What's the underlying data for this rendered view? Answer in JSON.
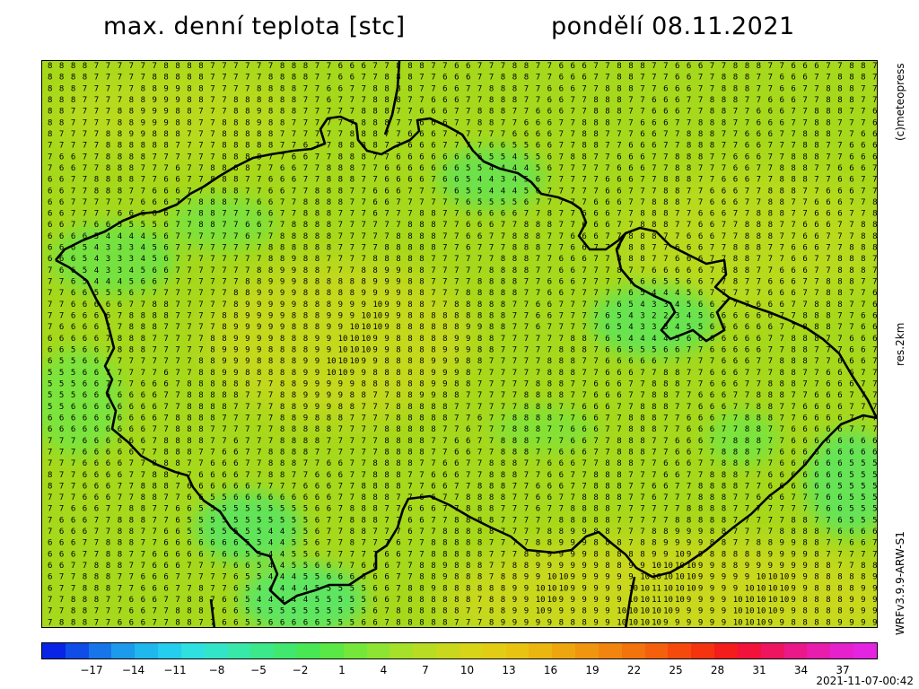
{
  "header": {
    "title": "max. denní teplota [stc]",
    "date_label": "pondělí 08.11.2021"
  },
  "side_labels": {
    "credit": "(c)meteopress",
    "resolution": "res.2km",
    "model": "WRFv3.9.9-ARW-S1"
  },
  "timestamp": "2021-11-07-00:42",
  "legend": {
    "ticks": [
      "−17",
      "−14",
      "−11",
      "−8",
      "−5",
      "−2",
      "1",
      "4",
      "7",
      "10",
      "13",
      "16",
      "19",
      "22",
      "25",
      "28",
      "31",
      "34",
      "37"
    ],
    "colors": [
      "#0a24e6",
      "#0f4ce8",
      "#1775ea",
      "#1c9aec",
      "#20b6ee",
      "#25cdee",
      "#2ee0e0",
      "#33e5c8",
      "#38e8a8",
      "#3be88a",
      "#40e86e",
      "#48e855",
      "#5ae845",
      "#74e73a",
      "#8ee432",
      "#a5e02a",
      "#b8dc22",
      "#c9d81c",
      "#d8d418",
      "#e2cd14",
      "#e8c312",
      "#ecb610",
      "#eea60f",
      "#f0960e",
      "#f2850d",
      "#f3730c",
      "#f4600b",
      "#f54a0c",
      "#f5330f",
      "#f51c1c",
      "#f2123a",
      "#ee1460",
      "#ea1888",
      "#e81cad",
      "#e620cc",
      "#e524e2"
    ]
  },
  "map": {
    "field_description_colors": {
      "base": "#a6d81b",
      "warm": "#c9d81c",
      "cool": "#74e73a",
      "cold": "#3ee888"
    }
  }
}
